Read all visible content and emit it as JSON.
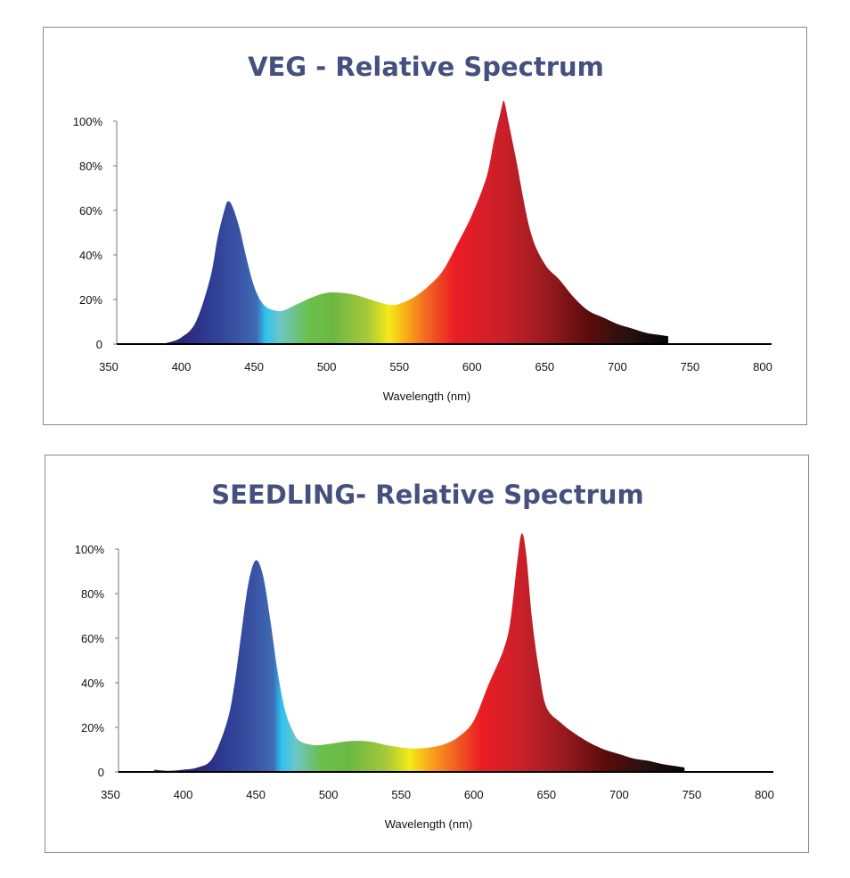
{
  "chart_data": [
    {
      "type": "area",
      "title": "VEG - Relative Spectrum",
      "xlabel": "Wavelength (nm)",
      "ylabel": "",
      "xlim": [
        350,
        800
      ],
      "ylim": [
        0,
        100
      ],
      "xticks": [
        "350",
        "400",
        "450",
        "500",
        "550",
        "600",
        "650",
        "700",
        "750",
        "800"
      ],
      "yticks": [
        "0",
        "20%",
        "40%",
        "60%",
        "80%",
        "100%"
      ],
      "grid": false,
      "x": [
        385,
        390,
        400,
        410,
        420,
        425,
        430,
        432,
        435,
        440,
        445,
        450,
        455,
        460,
        465,
        470,
        480,
        490,
        500,
        510,
        520,
        530,
        540,
        545,
        550,
        560,
        570,
        580,
        590,
        600,
        610,
        615,
        620,
        622,
        625,
        630,
        640,
        650,
        660,
        670,
        680,
        690,
        700,
        710,
        720,
        730,
        735
      ],
      "y": [
        0,
        0.5,
        3,
        10,
        30,
        48,
        61,
        64,
        62,
        52,
        38,
        26,
        19,
        16,
        15,
        15,
        18,
        21,
        23,
        23,
        22,
        20,
        18,
        17.5,
        18,
        21,
        26,
        33,
        45,
        58,
        75,
        91,
        105,
        109,
        100,
        84,
        51,
        36,
        29,
        21,
        15,
        12,
        9,
        7,
        5,
        4,
        3.5
      ],
      "gradient": [
        [
          400,
          "#2a2675"
        ],
        [
          420,
          "#2e3d94"
        ],
        [
          440,
          "#3a55a5"
        ],
        [
          452,
          "#3d6db5"
        ],
        [
          458,
          "#2ec4ef"
        ],
        [
          468,
          "#6ec6c4"
        ],
        [
          488,
          "#6abf4b"
        ],
        [
          505,
          "#6db843"
        ],
        [
          528,
          "#a6c93a"
        ],
        [
          543,
          "#f4ea16"
        ],
        [
          556,
          "#f9a51b"
        ],
        [
          568,
          "#f26a21"
        ],
        [
          588,
          "#ec1c24"
        ],
        [
          622,
          "#c8202a"
        ],
        [
          650,
          "#9b1b1f"
        ],
        [
          680,
          "#5c0c0c"
        ],
        [
          710,
          "#231010"
        ],
        [
          735,
          "#050505"
        ]
      ]
    },
    {
      "type": "area",
      "title": "SEEDLING- Relative Spectrum",
      "xlabel": "Wavelength (nm)",
      "ylabel": "",
      "xlim": [
        350,
        800
      ],
      "ylim": [
        0,
        100
      ],
      "xticks": [
        "350",
        "400",
        "450",
        "500",
        "550",
        "600",
        "650",
        "700",
        "750",
        "800"
      ],
      "yticks": [
        "0",
        "20%",
        "40%",
        "60%",
        "80%",
        "100%"
      ],
      "grid": false,
      "x": [
        380,
        390,
        400,
        410,
        420,
        430,
        435,
        440,
        445,
        450,
        455,
        460,
        465,
        470,
        475,
        480,
        490,
        500,
        510,
        520,
        530,
        540,
        550,
        560,
        570,
        580,
        590,
        600,
        610,
        620,
        625,
        630,
        633,
        636,
        640,
        645,
        650,
        660,
        670,
        680,
        690,
        700,
        710,
        720,
        730,
        745
      ],
      "y": [
        1,
        0.5,
        1,
        2,
        6,
        22,
        38,
        62,
        85,
        95,
        88,
        68,
        45,
        28,
        19,
        14,
        12,
        12.5,
        13.5,
        14,
        13.5,
        12,
        11,
        10.5,
        11,
        12.5,
        16,
        23,
        39,
        54,
        67,
        95,
        107,
        98,
        69,
        45,
        29,
        22,
        17,
        13,
        10,
        8,
        6,
        5,
        3.5,
        2
      ],
      "gradient": [
        [
          410,
          "#2a2675"
        ],
        [
          430,
          "#2e3d94"
        ],
        [
          450,
          "#3a55a5"
        ],
        [
          462,
          "#3d6db5"
        ],
        [
          468,
          "#2ec4ef"
        ],
        [
          478,
          "#6ec6c4"
        ],
        [
          495,
          "#6abf4b"
        ],
        [
          515,
          "#6db843"
        ],
        [
          540,
          "#a6c93a"
        ],
        [
          556,
          "#f4ea16"
        ],
        [
          570,
          "#f9a51b"
        ],
        [
          585,
          "#f26a21"
        ],
        [
          605,
          "#ec1c24"
        ],
        [
          633,
          "#c8202a"
        ],
        [
          660,
          "#9b1b1f"
        ],
        [
          690,
          "#5c0c0c"
        ],
        [
          720,
          "#231010"
        ],
        [
          745,
          "#050505"
        ]
      ]
    }
  ]
}
